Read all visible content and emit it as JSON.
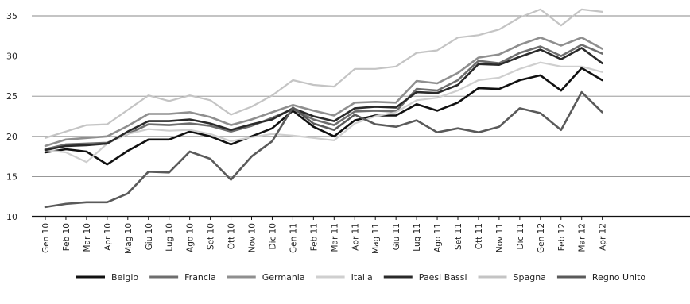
{
  "chart_data": {
    "type": "line",
    "title": "",
    "xlabel": "",
    "ylabel": "",
    "ylim": [
      10,
      35
    ],
    "yticks": [
      10,
      15,
      20,
      25,
      30,
      35
    ],
    "grid": true,
    "legend_position": "bottom",
    "categories": [
      "Gen 10",
      "Feb 10",
      "Mar 10",
      "Apr 10",
      "Mag 10",
      "Giu 10",
      "Lug 10",
      "Ago 10",
      "Set 10",
      "Ott 10",
      "Nov 10",
      "Dic 10",
      "Gen 11",
      "Feb 11",
      "Mar 11",
      "Apr 11",
      "Mag 11",
      "Giu 11",
      "Lug 11",
      "Ago 11",
      "Set 11",
      "Ott 11",
      "Nov 11",
      "Dic 11",
      "Gen 12",
      "Feb 12",
      "Mar 12",
      "Apr 12"
    ],
    "series": [
      {
        "name": "Belgio",
        "color": "#111111",
        "width": 2.6,
        "values": [
          18.0,
          18.4,
          18.1,
          16.5,
          18.2,
          19.6,
          19.6,
          20.6,
          20.0,
          19.0,
          20.0,
          21.0,
          23.2,
          21.2,
          20.0,
          22.0,
          22.6,
          22.6,
          24.0,
          23.2,
          24.2,
          26.0,
          25.9,
          27.0,
          27.6,
          25.7,
          28.5,
          27.0
        ]
      },
      {
        "name": "Francia",
        "color": "#6e6e6e",
        "width": 2.6,
        "values": [
          18.4,
          19.0,
          19.1,
          19.2,
          20.3,
          21.5,
          21.4,
          21.6,
          21.3,
          20.6,
          21.3,
          22.3,
          23.4,
          22.1,
          21.4,
          23.1,
          23.2,
          23.1,
          25.9,
          25.7,
          27.0,
          29.4,
          29.1,
          30.4,
          31.2,
          30.0,
          31.4,
          30.3
        ]
      },
      {
        "name": "Germania",
        "color": "#8f8f8f",
        "width": 2.6,
        "values": [
          18.8,
          19.6,
          19.8,
          20.0,
          21.3,
          22.8,
          22.8,
          23.0,
          22.4,
          21.4,
          22.1,
          23.0,
          23.9,
          23.2,
          22.6,
          24.2,
          24.3,
          24.2,
          26.9,
          26.6,
          27.9,
          29.8,
          30.2,
          31.4,
          32.3,
          31.3,
          32.3,
          30.9
        ]
      },
      {
        "name": "Italia",
        "color": "#cfcfcf",
        "width": 2.2,
        "values": [
          18.3,
          18.0,
          16.8,
          19.1,
          20.3,
          20.9,
          20.7,
          20.8,
          20.3,
          19.4,
          19.9,
          20.3,
          20.1,
          19.8,
          19.5,
          21.6,
          22.5,
          23.0,
          24.5,
          24.8,
          25.7,
          27.0,
          27.3,
          28.4,
          29.2,
          28.7,
          28.7,
          28.0
        ]
      },
      {
        "name": "Paesi Bassi",
        "color": "#2a2a2a",
        "width": 2.6,
        "values": [
          18.3,
          18.8,
          18.9,
          19.1,
          20.6,
          21.9,
          21.9,
          22.1,
          21.6,
          20.8,
          21.5,
          22.1,
          23.5,
          22.5,
          21.9,
          23.5,
          23.7,
          23.6,
          25.5,
          25.4,
          26.4,
          29.0,
          28.9,
          29.9,
          30.8,
          29.6,
          31.0,
          29.1
        ]
      },
      {
        "name": "Spagna",
        "color": "#c4c4c4",
        "width": 2.2,
        "values": [
          19.8,
          20.6,
          21.4,
          21.5,
          23.3,
          25.1,
          24.4,
          25.1,
          24.5,
          22.7,
          23.7,
          25.1,
          27.0,
          26.4,
          26.2,
          28.4,
          28.4,
          28.7,
          30.4,
          30.7,
          32.3,
          32.6,
          33.3,
          34.8,
          35.8,
          33.8,
          35.8,
          35.5
        ]
      },
      {
        "name": "Regno Unito",
        "color": "#5a5a5a",
        "width": 2.6,
        "values": [
          11.2,
          11.6,
          11.8,
          11.8,
          12.9,
          15.6,
          15.5,
          18.1,
          17.2,
          14.6,
          17.5,
          19.4,
          23.6,
          21.6,
          20.8,
          22.7,
          21.5,
          21.2,
          22.0,
          20.5,
          21.0,
          20.5,
          21.2,
          23.5,
          22.9,
          20.8,
          25.5,
          23.0
        ]
      }
    ]
  }
}
